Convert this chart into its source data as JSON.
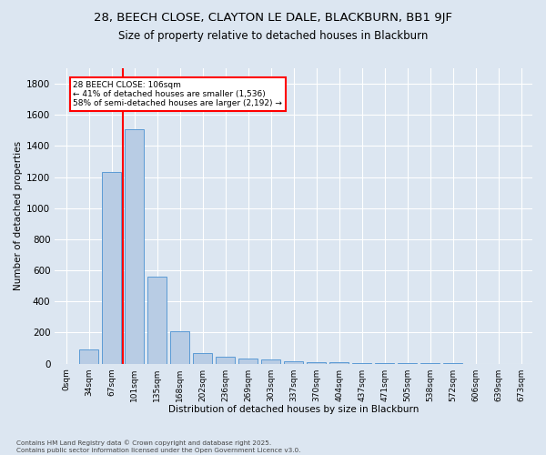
{
  "title_line1": "28, BEECH CLOSE, CLAYTON LE DALE, BLACKBURN, BB1 9JF",
  "title_line2": "Size of property relative to detached houses in Blackburn",
  "xlabel": "Distribution of detached houses by size in Blackburn",
  "ylabel": "Number of detached properties",
  "bar_labels": [
    "0sqm",
    "34sqm",
    "67sqm",
    "101sqm",
    "135sqm",
    "168sqm",
    "202sqm",
    "236sqm",
    "269sqm",
    "303sqm",
    "337sqm",
    "370sqm",
    "404sqm",
    "437sqm",
    "471sqm",
    "505sqm",
    "538sqm",
    "572sqm",
    "606sqm",
    "639sqm",
    "673sqm"
  ],
  "bar_values": [
    0,
    90,
    1230,
    1510,
    560,
    210,
    65,
    45,
    35,
    25,
    15,
    10,
    8,
    5,
    3,
    2,
    1,
    1,
    0,
    0,
    0
  ],
  "bar_color": "#b8cce4",
  "bar_edge_color": "#5b9bd5",
  "highlight_color": "#ff0000",
  "annotation_title": "28 BEECH CLOSE: 106sqm",
  "annotation_line2": "← 41% of detached houses are smaller (1,536)",
  "annotation_line3": "58% of semi-detached houses are larger (2,192) →",
  "annotation_box_color": "#ff0000",
  "ylim": [
    0,
    1900
  ],
  "yticks": [
    0,
    200,
    400,
    600,
    800,
    1000,
    1200,
    1400,
    1600,
    1800
  ],
  "footer_line1": "Contains HM Land Registry data © Crown copyright and database right 2025.",
  "footer_line2": "Contains public sector information licensed under the Open Government Licence v3.0.",
  "background_color": "#dce6f1",
  "plot_bg_color": "#dce6f1",
  "grid_color": "#ffffff",
  "title_fontsize": 9.5,
  "subtitle_fontsize": 8.5
}
